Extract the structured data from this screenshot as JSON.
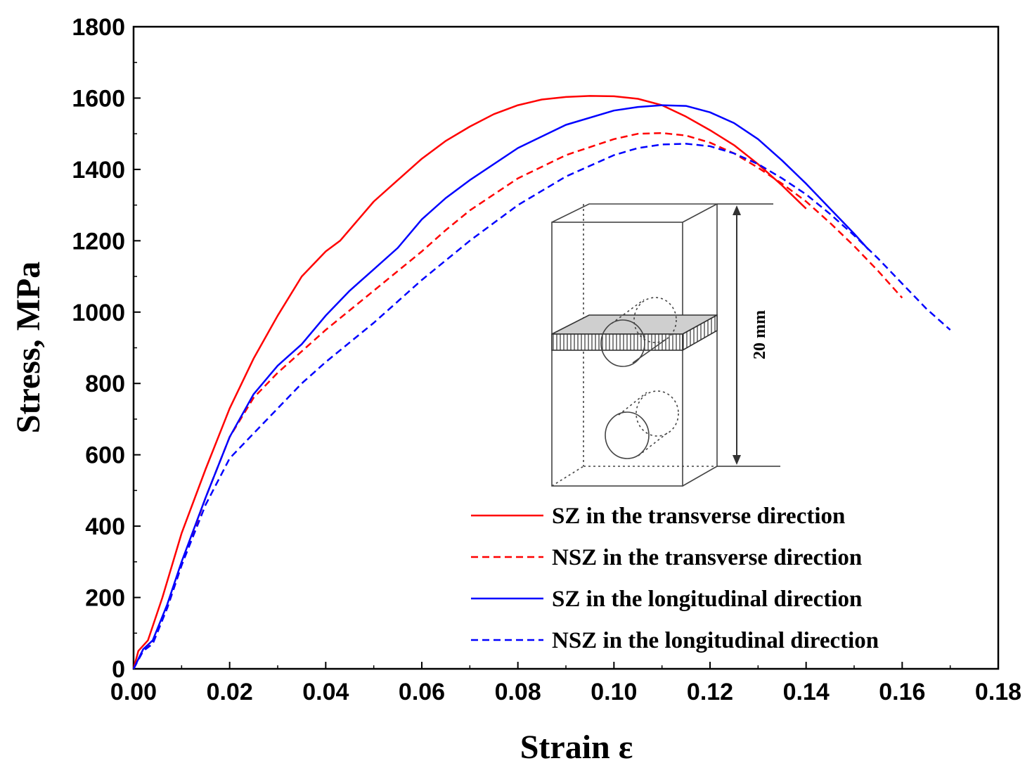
{
  "chart_data": {
    "type": "line",
    "title": "",
    "xlabel": "Strain ε",
    "ylabel": "Stress, MPa",
    "xlim": [
      0,
      0.18
    ],
    "ylim": [
      0,
      1800
    ],
    "xticks": [
      "0.00",
      "0.02",
      "0.04",
      "0.06",
      "0.08",
      "0.10",
      "0.12",
      "0.14",
      "0.16",
      "0.18"
    ],
    "yticks": [
      "0",
      "200",
      "400",
      "600",
      "800",
      "1000",
      "1200",
      "1400",
      "1600",
      "1800"
    ],
    "legend_position": "bottom-right",
    "series": [
      {
        "name": "SZ in the transverse direction",
        "color": "#ff0000",
        "style": "solid",
        "x": [
          0,
          0.001,
          0.003,
          0.006,
          0.01,
          0.015,
          0.02,
          0.025,
          0.03,
          0.035,
          0.04,
          0.043,
          0.05,
          0.055,
          0.06,
          0.065,
          0.07,
          0.075,
          0.08,
          0.085,
          0.09,
          0.095,
          0.1,
          0.105,
          0.11,
          0.115,
          0.12,
          0.125,
          0.13,
          0.135,
          0.14
        ],
        "values": [
          0,
          50,
          80,
          200,
          380,
          560,
          730,
          870,
          990,
          1100,
          1170,
          1200,
          1310,
          1370,
          1430,
          1480,
          1520,
          1555,
          1580,
          1596,
          1603,
          1606,
          1605,
          1598,
          1580,
          1548,
          1510,
          1468,
          1415,
          1355,
          1290
        ]
      },
      {
        "name": "NSZ in the transverse direction",
        "color": "#ff0000",
        "style": "dashed",
        "x": [
          0,
          0.002,
          0.004,
          0.007,
          0.01,
          0.015,
          0.02,
          0.025,
          0.03,
          0.035,
          0.04,
          0.05,
          0.06,
          0.065,
          0.07,
          0.08,
          0.09,
          0.1,
          0.105,
          0.11,
          0.115,
          0.12,
          0.125,
          0.13,
          0.135,
          0.14,
          0.145,
          0.15,
          0.155,
          0.16
        ],
        "values": [
          0,
          55,
          75,
          170,
          290,
          480,
          650,
          760,
          830,
          890,
          950,
          1060,
          1170,
          1230,
          1285,
          1375,
          1440,
          1485,
          1500,
          1502,
          1495,
          1475,
          1445,
          1405,
          1360,
          1310,
          1250,
          1185,
          1115,
          1040
        ]
      },
      {
        "name": "SZ in the longitudinal direction",
        "color": "#0000ff",
        "style": "solid",
        "x": [
          0,
          0.002,
          0.004,
          0.007,
          0.01,
          0.015,
          0.02,
          0.025,
          0.03,
          0.035,
          0.04,
          0.045,
          0.05,
          0.055,
          0.06,
          0.065,
          0.07,
          0.08,
          0.09,
          0.1,
          0.105,
          0.11,
          0.115,
          0.12,
          0.125,
          0.13,
          0.135,
          0.14,
          0.145,
          0.15,
          0.153
        ],
        "values": [
          0,
          55,
          80,
          180,
          300,
          480,
          650,
          770,
          850,
          910,
          990,
          1060,
          1120,
          1180,
          1260,
          1320,
          1370,
          1460,
          1525,
          1565,
          1575,
          1580,
          1578,
          1560,
          1530,
          1485,
          1425,
          1360,
          1290,
          1220,
          1175
        ]
      },
      {
        "name": "NSZ in the longitudinal direction",
        "color": "#0000ff",
        "style": "dashed",
        "x": [
          0,
          0.002,
          0.004,
          0.007,
          0.01,
          0.015,
          0.02,
          0.025,
          0.03,
          0.035,
          0.04,
          0.05,
          0.06,
          0.07,
          0.08,
          0.09,
          0.1,
          0.105,
          0.11,
          0.115,
          0.12,
          0.125,
          0.13,
          0.135,
          0.14,
          0.145,
          0.15,
          0.155,
          0.16,
          0.165,
          0.17
        ],
        "values": [
          0,
          50,
          70,
          170,
          290,
          460,
          590,
          660,
          730,
          800,
          860,
          970,
          1090,
          1200,
          1300,
          1380,
          1440,
          1460,
          1470,
          1472,
          1465,
          1445,
          1415,
          1375,
          1330,
          1275,
          1215,
          1150,
          1080,
          1010,
          950
        ]
      }
    ],
    "inset": {
      "dimension_label": "20 mm"
    }
  }
}
